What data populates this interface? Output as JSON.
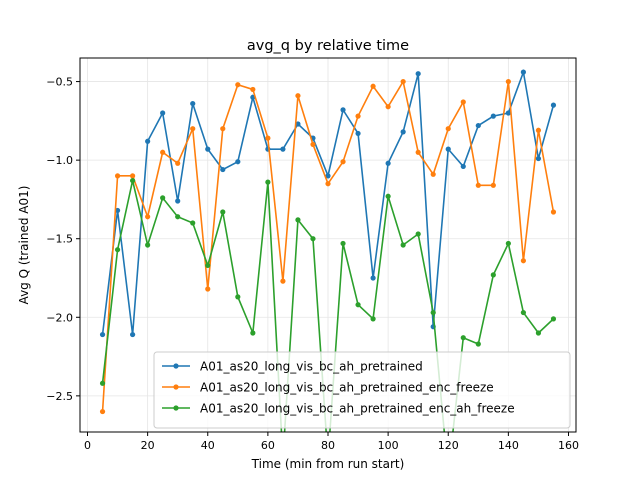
{
  "chart_data": {
    "type": "line",
    "title": "avg_q by relative time",
    "xlabel": "Time (min from run start)",
    "ylabel": "Avg Q (trained A01)",
    "xlim": [
      -2.5,
      162.5
    ],
    "ylim": [
      -2.73,
      -0.35
    ],
    "xticks": [
      0,
      20,
      40,
      60,
      80,
      100,
      120,
      140,
      160
    ],
    "yticks": [
      -2.5,
      -2.0,
      -1.5,
      -1.0,
      -0.5
    ],
    "ytick_labels": [
      "−2.5",
      "−2.0",
      "−1.5",
      "−1.0",
      "−0.5"
    ],
    "grid": true,
    "legend_position": "lower-right",
    "x": [
      5,
      10,
      15,
      20,
      25,
      30,
      35,
      40,
      45,
      50,
      55,
      60,
      65,
      70,
      75,
      80,
      85,
      90,
      95,
      100,
      105,
      110,
      115,
      120,
      125,
      130,
      135,
      140,
      145,
      150,
      155
    ],
    "series": [
      {
        "name": "A01_as20_long_vis_bc_ah_pretrained",
        "color": "#1f77b4",
        "values": [
          -2.11,
          -1.32,
          -2.11,
          -0.88,
          -0.7,
          -1.26,
          -0.64,
          -0.93,
          -1.06,
          -1.01,
          -0.6,
          -0.93,
          -0.93,
          -0.77,
          -0.86,
          -1.1,
          -0.68,
          -0.83,
          -1.75,
          -1.02,
          -0.82,
          -0.45,
          -2.06,
          -0.93,
          -1.04,
          -0.78,
          -0.72,
          -0.7,
          -0.44,
          -0.99,
          -0.65
        ]
      },
      {
        "name": "A01_as20_long_vis_bc_ah_pretrained_enc_freeze",
        "color": "#ff7f0e",
        "values": [
          -2.6,
          -1.1,
          -1.1,
          -1.36,
          -0.95,
          -1.02,
          -0.8,
          -1.82,
          -0.8,
          -0.52,
          -0.55,
          -0.86,
          -1.77,
          -0.59,
          -0.9,
          -1.15,
          -1.01,
          -0.72,
          -0.53,
          -0.66,
          -0.5,
          -0.95,
          -1.09,
          -0.8,
          -0.63,
          -1.16,
          -1.16,
          -0.5,
          -1.64,
          -0.81,
          -1.33
        ]
      },
      {
        "name": "A01_as20_long_vis_bc_ah_pretrained_enc_ah_freeze",
        "color": "#2ca02c",
        "values": [
          -2.42,
          -1.57,
          -1.13,
          -1.54,
          -1.24,
          -1.36,
          -1.4,
          -1.67,
          -1.33,
          -1.87,
          -2.1,
          -1.14,
          -2.9,
          -1.38,
          -1.5,
          -2.9,
          -1.53,
          -1.92,
          -2.01,
          -1.23,
          -1.54,
          -1.47,
          -1.97,
          -3.0,
          -2.13,
          -2.17,
          -1.73,
          -1.53,
          -1.97,
          -2.1,
          -2.01
        ]
      }
    ]
  }
}
